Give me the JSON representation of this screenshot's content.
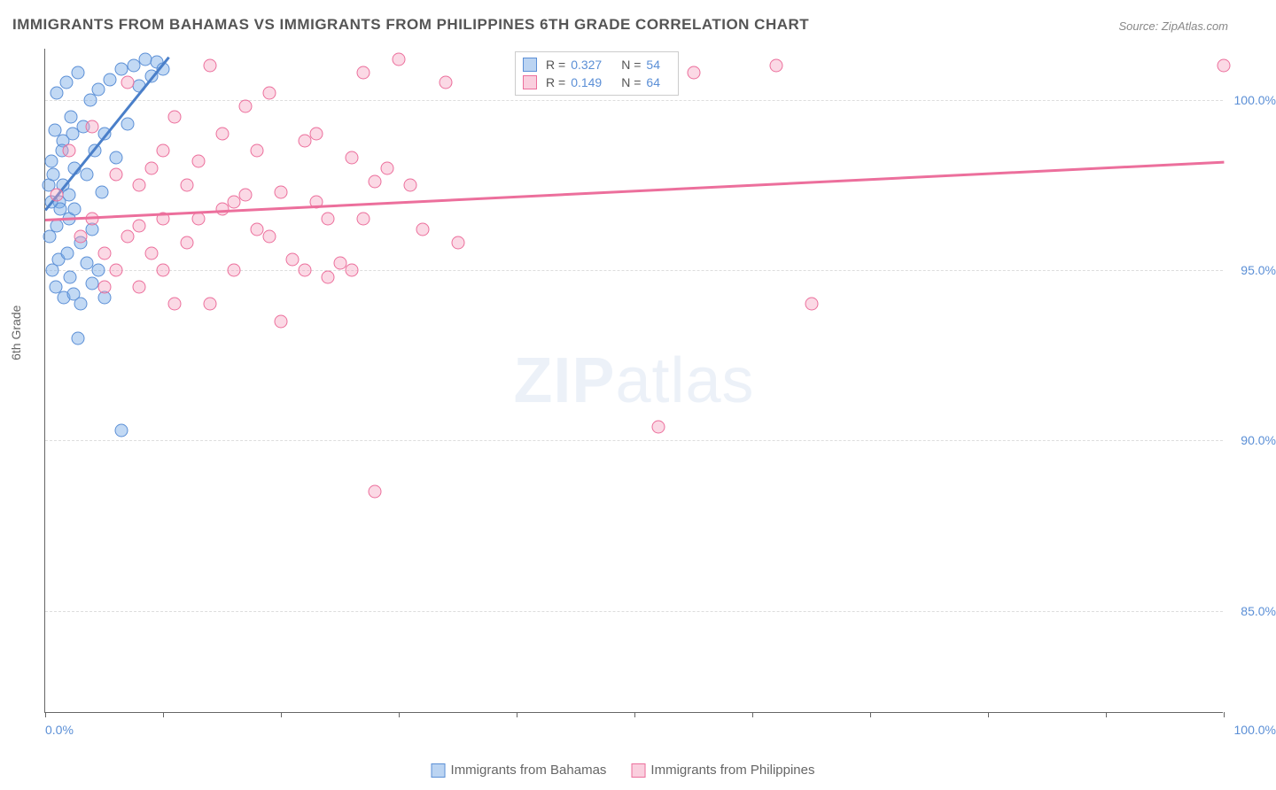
{
  "title": "IMMIGRANTS FROM BAHAMAS VS IMMIGRANTS FROM PHILIPPINES 6TH GRADE CORRELATION CHART",
  "source": "Source: ZipAtlas.com",
  "y_axis_label": "6th Grade",
  "watermark_bold": "ZIP",
  "watermark_light": "atlas",
  "chart": {
    "type": "scatter",
    "xlim": [
      0,
      100
    ],
    "ylim": [
      82,
      101.5
    ],
    "x_ticks": [
      0,
      10,
      20,
      30,
      40,
      50,
      60,
      70,
      80,
      90,
      100
    ],
    "x_tick_labels": {
      "0": "0.0%",
      "100": "100.0%"
    },
    "y_ticks": [
      85,
      90,
      95,
      100
    ],
    "y_tick_labels": {
      "85": "85.0%",
      "90": "90.0%",
      "95": "95.0%",
      "100": "100.0%"
    },
    "grid_color": "#dddddd",
    "background_color": "#ffffff",
    "axis_color": "#666666",
    "tick_label_color": "#5b8fd6",
    "point_radius": 7.5,
    "series": [
      {
        "name": "Immigrants from Bahamas",
        "color_fill": "rgba(120,170,230,0.45)",
        "color_stroke": "#5b8fd6",
        "R": "0.327",
        "N": "54",
        "trend": {
          "x1": 0,
          "y1": 96.8,
          "x2": 10.5,
          "y2": 101.3,
          "color": "#4a7fc9"
        },
        "points": [
          [
            0.3,
            97.5
          ],
          [
            0.5,
            98.2
          ],
          [
            0.8,
            99.1
          ],
          [
            1.0,
            100.2
          ],
          [
            1.2,
            97.0
          ],
          [
            1.5,
            98.8
          ],
          [
            1.8,
            100.5
          ],
          [
            2.0,
            96.5
          ],
          [
            2.2,
            99.5
          ],
          [
            2.5,
            98.0
          ],
          [
            2.8,
            100.8
          ],
          [
            3.0,
            95.8
          ],
          [
            3.2,
            99.2
          ],
          [
            3.5,
            97.8
          ],
          [
            3.8,
            100.0
          ],
          [
            4.0,
            96.2
          ],
          [
            4.2,
            98.5
          ],
          [
            4.5,
            100.3
          ],
          [
            4.8,
            97.3
          ],
          [
            5.0,
            99.0
          ],
          [
            5.5,
            100.6
          ],
          [
            6.0,
            98.3
          ],
          [
            6.5,
            100.9
          ],
          [
            7.0,
            99.3
          ],
          [
            7.5,
            101.0
          ],
          [
            8.0,
            100.4
          ],
          [
            8.5,
            101.2
          ],
          [
            9.0,
            100.7
          ],
          [
            9.5,
            101.1
          ],
          [
            10.0,
            100.9
          ],
          [
            0.4,
            96.0
          ],
          [
            0.6,
            95.0
          ],
          [
            0.9,
            94.5
          ],
          [
            1.1,
            95.3
          ],
          [
            1.3,
            96.8
          ],
          [
            1.6,
            94.2
          ],
          [
            1.9,
            95.5
          ],
          [
            2.1,
            94.8
          ],
          [
            2.4,
            94.3
          ],
          [
            3.0,
            94.0
          ],
          [
            0.5,
            97.0
          ],
          [
            1.0,
            96.3
          ],
          [
            1.5,
            97.5
          ],
          [
            2.0,
            97.2
          ],
          [
            2.5,
            96.8
          ],
          [
            3.5,
            95.2
          ],
          [
            4.0,
            94.6
          ],
          [
            4.5,
            95.0
          ],
          [
            5.0,
            94.2
          ],
          [
            2.8,
            93.0
          ],
          [
            6.5,
            90.3
          ],
          [
            0.7,
            97.8
          ],
          [
            1.4,
            98.5
          ],
          [
            2.3,
            99.0
          ]
        ]
      },
      {
        "name": "Immigrants from Philippines",
        "color_fill": "rgba(245,160,190,0.4)",
        "color_stroke": "#ec6f9c",
        "R": "0.149",
        "N": "64",
        "trend": {
          "x1": 0,
          "y1": 96.5,
          "x2": 100,
          "y2": 98.2,
          "color": "#ec6f9c"
        },
        "points": [
          [
            1.0,
            97.2
          ],
          [
            2.0,
            98.5
          ],
          [
            3.0,
            96.0
          ],
          [
            4.0,
            99.2
          ],
          [
            5.0,
            95.5
          ],
          [
            6.0,
            97.8
          ],
          [
            7.0,
            100.5
          ],
          [
            8.0,
            96.3
          ],
          [
            9.0,
            98.0
          ],
          [
            10.0,
            95.0
          ],
          [
            11.0,
            99.5
          ],
          [
            12.0,
            97.5
          ],
          [
            13.0,
            98.2
          ],
          [
            14.0,
            101.0
          ],
          [
            15.0,
            96.8
          ],
          [
            16.0,
            97.0
          ],
          [
            17.0,
            99.8
          ],
          [
            18.0,
            98.5
          ],
          [
            19.0,
            100.2
          ],
          [
            20.0,
            97.3
          ],
          [
            21.0,
            95.3
          ],
          [
            22.0,
            98.8
          ],
          [
            23.0,
            99.0
          ],
          [
            24.0,
            96.5
          ],
          [
            25.0,
            95.2
          ],
          [
            26.0,
            98.3
          ],
          [
            27.0,
            100.8
          ],
          [
            28.0,
            97.6
          ],
          [
            30.0,
            101.2
          ],
          [
            32.0,
            96.2
          ],
          [
            34.0,
            100.5
          ],
          [
            35.0,
            95.8
          ],
          [
            8.0,
            97.5
          ],
          [
            10.0,
            96.5
          ],
          [
            12.0,
            95.8
          ],
          [
            14.0,
            94.0
          ],
          [
            16.0,
            95.0
          ],
          [
            18.0,
            96.2
          ],
          [
            20.0,
            93.5
          ],
          [
            22.0,
            95.0
          ],
          [
            24.0,
            94.8
          ],
          [
            26.0,
            95.0
          ],
          [
            4.0,
            96.5
          ],
          [
            6.0,
            95.0
          ],
          [
            8.0,
            94.5
          ],
          [
            11.0,
            94.0
          ],
          [
            55.0,
            100.8
          ],
          [
            62.0,
            101.0
          ],
          [
            100.0,
            101.0
          ],
          [
            52.0,
            90.4
          ],
          [
            65.0,
            94.0
          ],
          [
            28.0,
            88.5
          ],
          [
            10.0,
            98.5
          ],
          [
            15.0,
            99.0
          ],
          [
            5.0,
            94.5
          ],
          [
            7.0,
            96.0
          ],
          [
            9.0,
            95.5
          ],
          [
            13.0,
            96.5
          ],
          [
            17.0,
            97.2
          ],
          [
            19.0,
            96.0
          ],
          [
            23.0,
            97.0
          ],
          [
            27.0,
            96.5
          ],
          [
            29.0,
            98.0
          ],
          [
            31.0,
            97.5
          ]
        ]
      }
    ]
  },
  "legend_top": {
    "r_label": "R =",
    "n_label": "N ="
  },
  "legend_bottom": [
    {
      "swatch": "blue",
      "label": "Immigrants from Bahamas"
    },
    {
      "swatch": "pink",
      "label": "Immigrants from Philippines"
    }
  ]
}
